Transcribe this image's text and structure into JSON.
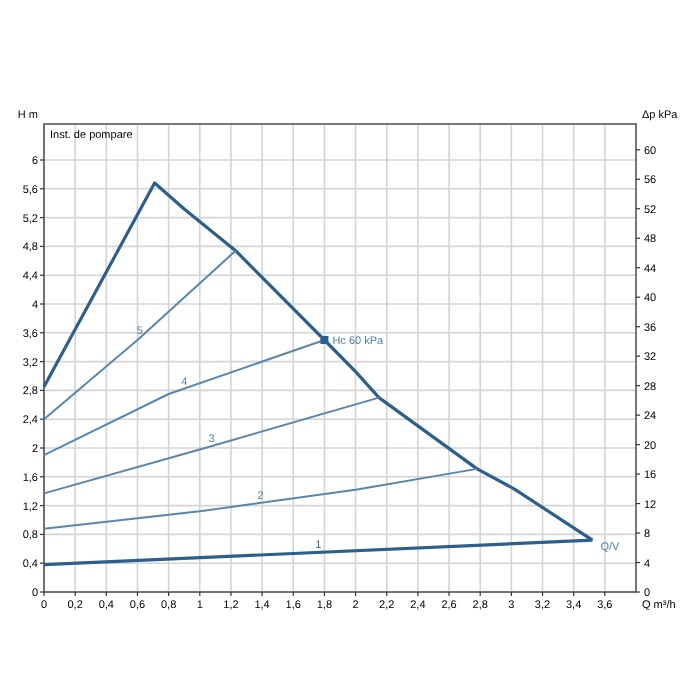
{
  "chart_data": {
    "type": "line",
    "title": "Inst. de pompare",
    "xlabel": "Q m³/h",
    "ylabel": "H m",
    "y2label": "Δp kPa",
    "xlim": [
      0,
      3.8
    ],
    "ylim": [
      0,
      6.5
    ],
    "y2lim": [
      0,
      63.5
    ],
    "xticks": [
      0,
      {
        "value": 0.2,
        "label": "0,2"
      },
      {
        "value": 0.4,
        "label": "0,4"
      },
      {
        "value": 0.6,
        "label": "0,6"
      },
      {
        "value": 0.8,
        "label": "0,8"
      },
      1,
      {
        "value": 1.2,
        "label": "1,2"
      },
      {
        "value": 1.4,
        "label": "1,4"
      },
      {
        "value": 1.6,
        "label": "1,6"
      },
      {
        "value": 1.8,
        "label": "1,8"
      },
      2,
      {
        "value": 2.2,
        "label": "2,2"
      },
      {
        "value": 2.4,
        "label": "2,4"
      },
      {
        "value": 2.6,
        "label": "2,6"
      },
      {
        "value": 2.8,
        "label": "2,8"
      },
      3,
      {
        "value": 3.2,
        "label": "3,2"
      },
      {
        "value": 3.4,
        "label": "3,4"
      },
      {
        "value": 3.6,
        "label": "3,6"
      }
    ],
    "yticks": [
      0,
      {
        "value": 0.4,
        "label": "0,4"
      },
      {
        "value": 0.8,
        "label": "0,8"
      },
      {
        "value": 1.2,
        "label": "1,2"
      },
      {
        "value": 1.6,
        "label": "1,6"
      },
      2,
      {
        "value": 2.4,
        "label": "2,4"
      },
      {
        "value": 2.8,
        "label": "2,8"
      },
      {
        "value": 3.2,
        "label": "3,2"
      },
      {
        "value": 3.6,
        "label": "3,6"
      },
      4,
      {
        "value": 4.4,
        "label": "4,4"
      },
      {
        "value": 4.8,
        "label": "4,8"
      },
      {
        "value": 5.2,
        "label": "5,2"
      },
      {
        "value": 5.6,
        "label": "5,6"
      },
      6
    ],
    "y2ticks": [
      0,
      4,
      8,
      12,
      16,
      20,
      24,
      28,
      32,
      36,
      40,
      44,
      48,
      52,
      56,
      60
    ],
    "grid": true,
    "marker": "none",
    "series": [
      {
        "color": "#2b5f8e",
        "x": [
          0,
          0.71,
          0.9,
          1.23,
          1.8,
          2.0,
          2.15,
          2.78,
          3.02,
          3.52
        ],
        "values": [
          2.85,
          5.68,
          5.32,
          4.74,
          3.5,
          3.06,
          2.7,
          1.71,
          1.43,
          0.72
        ]
      },
      {
        "name": "1",
        "color": "#2b5f8e",
        "x": [
          0,
          3.52
        ],
        "values": [
          0.38,
          0.72
        ]
      },
      {
        "name": "2",
        "color": "#5a86ad",
        "x": [
          0,
          1.0,
          2.0,
          2.78
        ],
        "values": [
          0.88,
          1.12,
          1.42,
          1.71
        ]
      },
      {
        "name": "3",
        "color": "#5a86ad",
        "x": [
          0,
          1.0,
          2.15
        ],
        "values": [
          1.37,
          1.98,
          2.7
        ]
      },
      {
        "name": "4",
        "color": "#5a86ad",
        "x": [
          0,
          0.8,
          1.8
        ],
        "values": [
          1.9,
          2.75,
          3.5
        ]
      },
      {
        "name": "5",
        "color": "#5a86ad",
        "x": [
          0,
          0.6,
          1.23
        ],
        "values": [
          2.4,
          3.5,
          4.74
        ]
      }
    ],
    "annotations": [
      {
        "text": "Hc 60 kPa",
        "x": 1.8,
        "y": 3.5
      },
      {
        "text": "Q/V",
        "x": 3.52,
        "y": 0.72
      }
    ]
  }
}
